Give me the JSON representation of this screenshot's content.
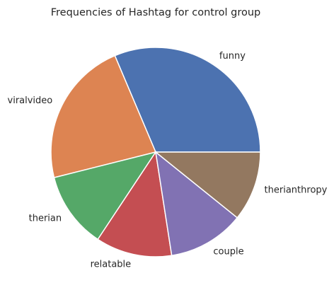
{
  "chart_data": {
    "type": "pie",
    "title": "Frequencies of Hashtag for control group",
    "labels": [
      "funny",
      "viralvideo",
      "therian",
      "relatable",
      "couple",
      "therianthropy"
    ],
    "values": [
      32,
      23,
      12,
      12,
      12,
      11
    ],
    "colors": [
      "#4c72b0",
      "#dd8452",
      "#55a868",
      "#c44e52",
      "#8172b3",
      "#937860"
    ],
    "start_angle_deg": 0,
    "direction": "counterclockwise"
  }
}
